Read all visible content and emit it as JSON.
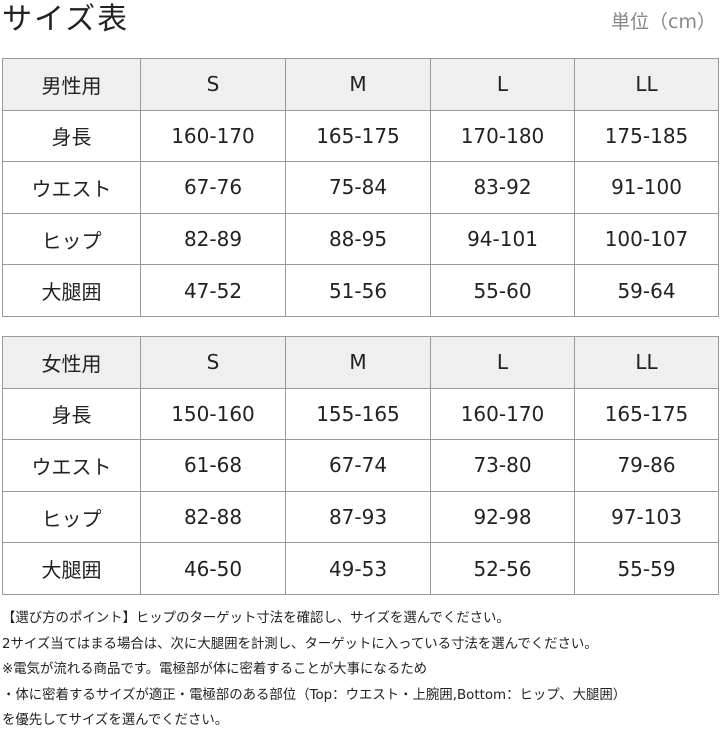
{
  "header": {
    "title": "サイズ表",
    "unit": "単位（cm）"
  },
  "tables": [
    {
      "header": [
        "男性用",
        "S",
        "M",
        "L",
        "LL"
      ],
      "rows": [
        [
          "身長",
          "160-170",
          "165-175",
          "170-180",
          "175-185"
        ],
        [
          "ウエスト",
          "67-76",
          "75-84",
          "83-92",
          "91-100"
        ],
        [
          "ヒップ",
          "82-89",
          "88-95",
          "94-101",
          "100-107"
        ],
        [
          "大腿囲",
          "47-52",
          "51-56",
          "55-60",
          "59-64"
        ]
      ]
    },
    {
      "header": [
        "女性用",
        "S",
        "M",
        "L",
        "LL"
      ],
      "rows": [
        [
          "身長",
          "150-160",
          "155-165",
          "160-170",
          "165-175"
        ],
        [
          "ウエスト",
          "61-68",
          "67-74",
          "73-80",
          "79-86"
        ],
        [
          "ヒップ",
          "82-88",
          "87-93",
          "92-98",
          "97-103"
        ],
        [
          "大腿囲",
          "46-50",
          "49-53",
          "52-56",
          "55-59"
        ]
      ]
    }
  ],
  "notes": [
    "【選び方のポイント】ヒップのターゲット寸法を確認し、サイズを選んでください。",
    "2サイズ当てはまる場合は、次に大腿囲を計測し、ターゲットに入っている寸法を選んでください。",
    "※電気が流れる商品です。電極部が体に密着することが大事になるため",
    "・体に密着するサイズが適正・電極部のある部位（Top：ウエスト・上腕囲,Bottom：ヒップ、大腿囲）",
    "を優先してサイズを選んでください。"
  ]
}
